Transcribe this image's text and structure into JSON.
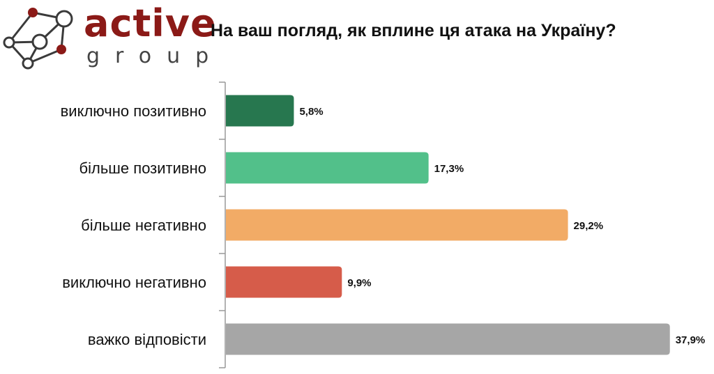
{
  "logo": {
    "brand": "active",
    "sub": "group"
  },
  "chart_data": {
    "type": "bar",
    "orientation": "horizontal",
    "title": "На ваш погляд, як вплине ця атака на Україну?",
    "categories": [
      "виключно позитивно",
      "більше позитивно",
      "більше негативно",
      "виключно негативно",
      "важко відповісти"
    ],
    "values": [
      5.8,
      17.3,
      29.2,
      9.9,
      37.9
    ],
    "labels": [
      "5,8%",
      "17,3%",
      "29,2%",
      "9,9%",
      "37,9%"
    ],
    "colors": [
      "#27774f",
      "#52c08a",
      "#f2ab66",
      "#d65c4a",
      "#a6a6a6"
    ],
    "unit": "%",
    "xlabel": "",
    "ylabel": "",
    "grid": false
  }
}
